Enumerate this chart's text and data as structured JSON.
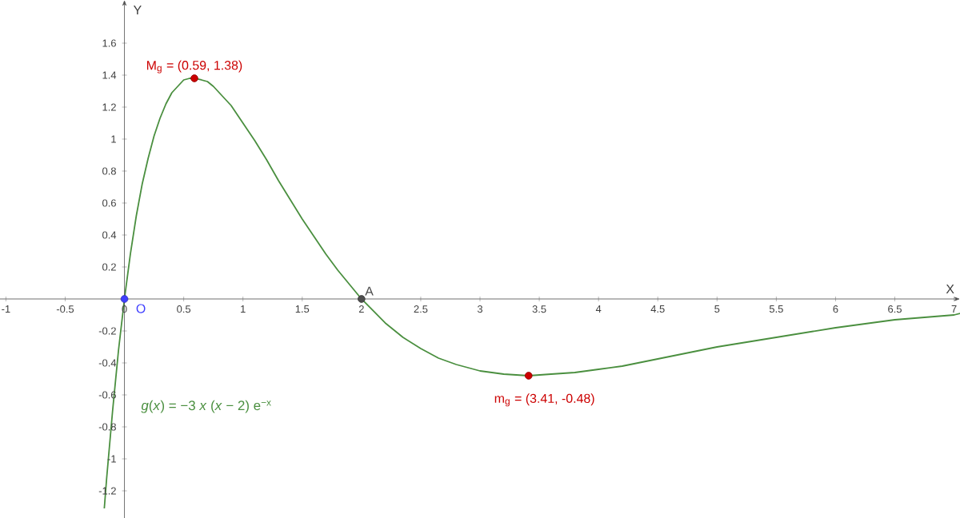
{
  "chart_data": {
    "type": "line",
    "xlabel": "X",
    "ylabel": "Y",
    "xlim": [
      -1.05,
      7.05
    ],
    "ylim": [
      -1.37,
      1.87
    ],
    "xticks": [
      -1,
      -0.5,
      0,
      0.5,
      1,
      1.5,
      2,
      2.5,
      3,
      3.5,
      4,
      4.5,
      5,
      5.5,
      6,
      6.5,
      7
    ],
    "yticks": [
      -1.2,
      -1,
      -0.8,
      -0.6,
      -0.4,
      -0.2,
      0.2,
      0.4,
      0.6,
      0.8,
      1,
      1.2,
      1.4,
      1.6
    ],
    "grid": false,
    "marker": "none",
    "line_style": "solid",
    "series": [
      {
        "color": "#4a8f3f",
        "x": [
          -0.17,
          -0.15,
          -0.1,
          -0.05,
          0,
          0.05,
          0.1,
          0.15,
          0.2,
          0.25,
          0.3,
          0.35,
          0.4,
          0.45,
          0.5,
          0.55,
          0.59,
          0.65,
          0.7,
          0.75,
          0.8,
          0.9,
          1,
          1.1,
          1.2,
          1.3,
          1.4,
          1.5,
          1.6,
          1.7,
          1.8,
          1.9,
          2,
          2.2,
          2.35,
          2.5,
          2.65,
          2.8,
          3,
          3.2,
          3.41,
          3.6,
          3.8,
          4,
          4.2,
          4.6,
          5,
          5.5,
          6,
          6.5,
          7,
          7.05
        ],
        "values": [
          -1.31,
          -1.12,
          -0.7,
          -0.32,
          0,
          0.28,
          0.52,
          0.72,
          0.88,
          1.02,
          1.13,
          1.22,
          1.29,
          1.33,
          1.37,
          1.38,
          1.38,
          1.37,
          1.36,
          1.33,
          1.29,
          1.21,
          1.1,
          0.99,
          0.87,
          0.74,
          0.62,
          0.5,
          0.39,
          0.28,
          0.18,
          0.09,
          0,
          -0.15,
          -0.24,
          -0.31,
          -0.37,
          -0.41,
          -0.45,
          -0.47,
          -0.48,
          -0.47,
          -0.46,
          -0.44,
          -0.42,
          -0.36,
          -0.3,
          -0.24,
          -0.18,
          -0.13,
          -0.1,
          -0.09
        ]
      },
      {
        "type": "scatter",
        "marker": "circle",
        "x": [
          0,
          2,
          0.59,
          3.41
        ],
        "values": [
          0,
          0,
          1.38,
          -0.48
        ],
        "colors": [
          "#4040ff",
          "#4d4d4d",
          "#cc0000",
          "#cc0000"
        ]
      }
    ],
    "annotations": [
      {
        "text": "O",
        "x": 0,
        "y": 0
      },
      {
        "text": "A",
        "x": 2,
        "y": 0
      },
      {
        "text": "M$_{g}$ = (0.59, 1.38)",
        "x": 0.59,
        "y": 1.38
      },
      {
        "text": "m$_{g}$ = (3.41, -0.48)",
        "x": 3.41,
        "y": -0.48
      },
      "*g*(*x*)  =  −3 *x* (*x* − 2) e$^{−x}$"
    ]
  }
}
